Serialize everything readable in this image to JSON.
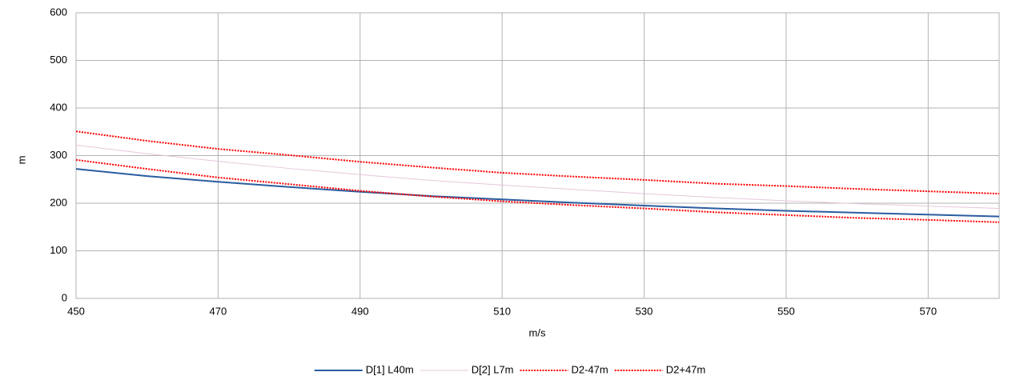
{
  "chart_data": {
    "type": "line",
    "x_label": "m/s",
    "y_label": "m",
    "x": [
      450,
      460,
      470,
      480,
      490,
      500,
      510,
      520,
      530,
      540,
      550,
      560,
      570,
      580
    ],
    "series": [
      {
        "name": "D[1] L40m",
        "color": "#2a5d9f",
        "dash": "solid",
        "values": [
          272,
          257,
          245,
          234,
          224,
          215,
          208,
          201,
          195,
          189,
          184,
          180,
          176,
          172
        ]
      },
      {
        "name": "D[2] L7m",
        "color": "#e6c6dc",
        "dash": "solid",
        "values": [
          322,
          304,
          288,
          273,
          260,
          248,
          238,
          229,
          220,
          212,
          205,
          199,
          194,
          189
        ]
      },
      {
        "name": "D2-47m",
        "color": "#ff0000",
        "dash": "dotted",
        "values": [
          291,
          272,
          254,
          240,
          226,
          214,
          204,
          196,
          189,
          181,
          175,
          169,
          165,
          160
        ]
      },
      {
        "name": "D2+47m",
        "color": "#ff0000",
        "dash": "dotted",
        "values": [
          351,
          331,
          314,
          301,
          287,
          275,
          264,
          256,
          249,
          241,
          236,
          230,
          225,
          220
        ]
      }
    ],
    "xlim": [
      450,
      580
    ],
    "xticks": [
      450,
      470,
      490,
      510,
      530,
      550,
      570
    ],
    "ylim": [
      0,
      600
    ],
    "yticks": [
      0,
      100,
      200,
      300,
      400,
      500,
      600
    ],
    "grid": true,
    "legend": "bottom"
  }
}
